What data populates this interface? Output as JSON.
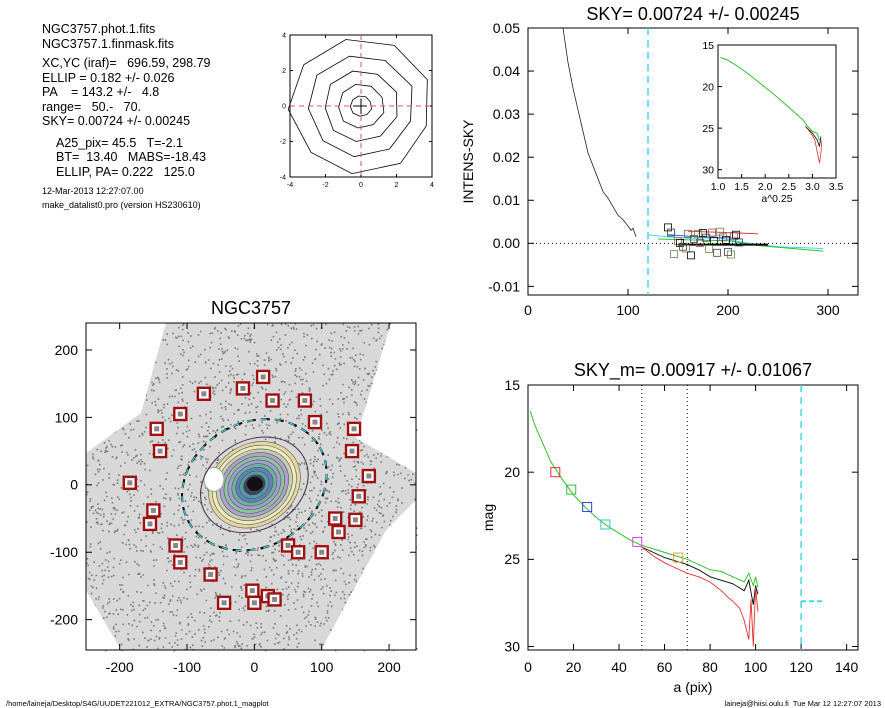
{
  "info": {
    "lines1": [
      "NGC3757.phot.1.fits",
      "NGC3757.1.finmask.fits"
    ],
    "lines2": [
      "XC,YC (iraf)=   696.59, 298.79",
      "ELLIP = 0.182 +/- 0.026",
      "PA    = 143.2 +/-   4.8",
      "range=   50.-   70.",
      "SKY= 0.00724 +/- 0.00245"
    ],
    "lines3": [
      "A25_pix= 45.5   T=-2.1",
      "BT=  13.40   MABS=-18.43",
      "ELLIP, PA= 0.222   125.0"
    ],
    "lines4": [
      "12-Mar-2013 12:27:07.00",
      "make_datalist0.pro (version HS230610)"
    ]
  },
  "footer": {
    "left": "/home/laineja/Desktop/S4G/UUDET221012_EXTRA/NGC3757.phot.1_magplot",
    "right": "laineja@hiisi.oulu.fi  Tue Mar 12 12:27:07 2013"
  },
  "chart_data": [
    {
      "id": "contour",
      "type": "contour",
      "xlim": [
        -4,
        4
      ],
      "ylim": [
        -4,
        4
      ],
      "xticks": [
        "-4",
        "-2",
        "0",
        "2",
        "4"
      ],
      "yticks": [
        "-4",
        "-2",
        "0",
        "2",
        "4"
      ],
      "contour_radii": [
        0.6,
        1.3,
        2.1,
        3.0,
        4.0
      ],
      "center_marker": [
        0,
        0
      ],
      "dashed_color": "#e05050"
    },
    {
      "id": "sky",
      "type": "line",
      "title": "SKY= 0.00724 +/- 0.00245",
      "ylabel": "INTENS-SKY",
      "xlim": [
        0,
        330
      ],
      "ylim": [
        -0.012,
        0.05
      ],
      "xticks": [
        "0",
        "100",
        "200",
        "300"
      ],
      "yticks": [
        "-0.01",
        "0.00",
        "0.01",
        "0.02",
        "0.03",
        "0.04",
        "0.05"
      ],
      "vline_x": 120,
      "vline_color": "#40d8e8",
      "profile": [
        [
          35,
          0.05
        ],
        [
          40,
          0.042
        ],
        [
          45,
          0.036
        ],
        [
          50,
          0.031
        ],
        [
          55,
          0.026
        ],
        [
          60,
          0.021
        ],
        [
          65,
          0.018
        ],
        [
          70,
          0.015
        ],
        [
          75,
          0.012
        ],
        [
          80,
          0.0105
        ],
        [
          85,
          0.0085
        ],
        [
          90,
          0.0065
        ],
        [
          95,
          0.0055
        ],
        [
          100,
          0.004
        ],
        [
          103,
          0.003
        ],
        [
          105,
          0.0035
        ],
        [
          108,
          0.0015
        ]
      ],
      "boxes": [
        [
          140,
          0.0037
        ],
        [
          143,
          0.0025
        ],
        [
          146,
          -0.0025
        ],
        [
          150,
          0.0005
        ],
        [
          152,
          0.0001
        ],
        [
          155,
          -0.0008
        ],
        [
          158,
          -0.0012
        ],
        [
          160,
          0.0022
        ],
        [
          163,
          -0.0028
        ],
        [
          166,
          0.001
        ],
        [
          170,
          0.0022
        ],
        [
          172,
          0.0001
        ],
        [
          175,
          0.0024
        ],
        [
          178,
          0.0013
        ],
        [
          181,
          -0.0013
        ],
        [
          184,
          0.0025
        ],
        [
          186,
          0.0006
        ],
        [
          189,
          -0.0022
        ],
        [
          192,
          0.0027
        ],
        [
          195,
          0.0014
        ],
        [
          198,
          0.0008
        ],
        [
          200,
          -0.002
        ],
        [
          203,
          -0.0026
        ],
        [
          206,
          0.0017
        ],
        [
          208,
          0.002
        ],
        [
          211,
          0.0002
        ]
      ],
      "box_colors": [
        "#000000",
        "#404040",
        "#6a8a4a",
        "#8a5a5a"
      ],
      "sky_level_line": [
        [
          130,
          -0.0003
        ],
        [
          240,
          -0.0003
        ]
      ],
      "inset": {
        "type": "line",
        "xlabel": "a^0.25",
        "xlim": [
          1.0,
          3.5
        ],
        "ylim": [
          15,
          31
        ],
        "xticks": [
          "1.0",
          "1.5",
          "2.0",
          "2.5",
          "3.0",
          "3.5"
        ],
        "yticks": [
          "15",
          "20",
          "25",
          "30"
        ],
        "green": [
          [
            1.05,
            16.5
          ],
          [
            1.2,
            16.8
          ],
          [
            1.4,
            17.5
          ],
          [
            1.6,
            18.3
          ],
          [
            1.8,
            19.2
          ],
          [
            2.0,
            20.1
          ],
          [
            2.2,
            21.0
          ],
          [
            2.4,
            22.0
          ],
          [
            2.6,
            23.0
          ],
          [
            2.8,
            24.0
          ],
          [
            2.9,
            24.8
          ],
          [
            3.0,
            25.4
          ],
          [
            3.1,
            25.6
          ],
          [
            3.15,
            26.5
          ]
        ],
        "red": [
          [
            2.9,
            25.1
          ],
          [
            3.0,
            25.9
          ],
          [
            3.05,
            26.4
          ],
          [
            3.1,
            27.8
          ],
          [
            3.15,
            29.2
          ],
          [
            3.18,
            28.0
          ],
          [
            3.2,
            26.5
          ]
        ],
        "black": [
          [
            2.85,
            24.8
          ],
          [
            3.0,
            25.6
          ],
          [
            3.1,
            26.4
          ],
          [
            3.15,
            27.2
          ],
          [
            3.18,
            26.0
          ]
        ]
      }
    },
    {
      "id": "image",
      "type": "scatter",
      "title": "NGC3757",
      "xlim": [
        -250,
        240
      ],
      "ylim": [
        -245,
        240
      ],
      "xticks": [
        "-200",
        "-100",
        "0",
        "100",
        "200"
      ],
      "yticks": [
        "-200",
        "-100",
        "0",
        "100",
        "200"
      ],
      "ellipse": {
        "a": 112,
        "b": 92,
        "pa": 150
      },
      "boxes": [
        [
          -185,
          3
        ],
        [
          -150,
          -38
        ],
        [
          -155,
          -58
        ],
        [
          -145,
          83
        ],
        [
          -140,
          50
        ],
        [
          -117,
          -90
        ],
        [
          -110,
          105
        ],
        [
          -110,
          -115
        ],
        [
          -75,
          135
        ],
        [
          -65,
          -133
        ],
        [
          -45,
          -175
        ],
        [
          -17,
          143
        ],
        [
          -3,
          -157
        ],
        [
          0,
          -175
        ],
        [
          13,
          160
        ],
        [
          20,
          -165
        ],
        [
          30,
          -170
        ],
        [
          27,
          125
        ],
        [
          50,
          -90
        ],
        [
          65,
          -100
        ],
        [
          75,
          125
        ],
        [
          90,
          93
        ],
        [
          100,
          -100
        ],
        [
          120,
          -50
        ],
        [
          125,
          -70
        ],
        [
          145,
          50
        ],
        [
          148,
          83
        ],
        [
          155,
          -17
        ],
        [
          150,
          -52
        ],
        [
          170,
          13
        ]
      ],
      "box_color": "#a01010"
    },
    {
      "id": "mag",
      "type": "line",
      "title": "SKY_m=  0.00917 +/- 0.01067",
      "xlabel": "a (pix)",
      "ylabel": "mag",
      "xlim": [
        0,
        145
      ],
      "ylim": [
        15,
        30.2
      ],
      "xticks": [
        "0",
        "20",
        "40",
        "60",
        "80",
        "100",
        "120",
        "140"
      ],
      "yticks": [
        "15",
        "20",
        "25",
        "30"
      ],
      "vlines_dotted": [
        50,
        70
      ],
      "vline_cyan": 120,
      "cyan_hseg": [
        [
          120,
          27.4
        ],
        [
          130,
          27.4
        ]
      ],
      "green": [
        [
          1,
          16.5
        ],
        [
          3,
          17.3
        ],
        [
          6,
          18.2
        ],
        [
          10,
          19.4
        ],
        [
          15,
          20.4
        ],
        [
          20,
          21.3
        ],
        [
          25,
          22.0
        ],
        [
          30,
          22.6
        ],
        [
          35,
          23.1
        ],
        [
          40,
          23.5
        ],
        [
          45,
          23.9
        ],
        [
          50,
          24.2
        ],
        [
          55,
          24.4
        ],
        [
          60,
          24.6
        ],
        [
          65,
          24.8
        ],
        [
          70,
          25.0
        ],
        [
          75,
          25.3
        ],
        [
          80,
          25.6
        ],
        [
          85,
          25.7
        ],
        [
          90,
          26.0
        ],
        [
          95,
          26.3
        ],
        [
          97,
          25.8
        ],
        [
          99,
          26.5
        ],
        [
          100,
          26.0
        ],
        [
          101,
          26.6
        ]
      ],
      "black": [
        [
          50,
          24.3
        ],
        [
          55,
          24.6
        ],
        [
          60,
          24.9
        ],
        [
          65,
          25.1
        ],
        [
          70,
          25.3
        ],
        [
          75,
          25.6
        ],
        [
          80,
          26.0
        ],
        [
          85,
          26.2
        ],
        [
          90,
          26.4
        ],
        [
          95,
          26.8
        ],
        [
          97,
          26.2
        ],
        [
          99,
          27.6
        ],
        [
          100,
          26.5
        ],
        [
          101,
          27.0
        ]
      ],
      "red": [
        [
          50,
          24.3
        ],
        [
          55,
          24.8
        ],
        [
          60,
          25.2
        ],
        [
          65,
          25.5
        ],
        [
          70,
          25.8
        ],
        [
          75,
          26.0
        ],
        [
          80,
          26.3
        ],
        [
          85,
          26.8
        ],
        [
          88,
          27.2
        ],
        [
          90,
          27.4
        ],
        [
          93,
          27.8
        ],
        [
          95,
          28.5
        ],
        [
          97,
          29.6
        ],
        [
          98,
          27.3
        ],
        [
          99,
          30.0
        ],
        [
          100,
          26.6
        ],
        [
          101,
          28.0
        ]
      ],
      "squares": [
        {
          "x": 12,
          "y": 20.0,
          "c": "#e03030"
        },
        {
          "x": 19,
          "y": 21.0,
          "c": "#30c030"
        },
        {
          "x": 26,
          "y": 22.0,
          "c": "#3040d0"
        },
        {
          "x": 34,
          "y": 23.0,
          "c": "#30c8d8"
        },
        {
          "x": 48,
          "y": 24.0,
          "c": "#e040e0"
        },
        {
          "x": 66,
          "y": 24.9,
          "c": "#e0a030"
        }
      ]
    }
  ]
}
